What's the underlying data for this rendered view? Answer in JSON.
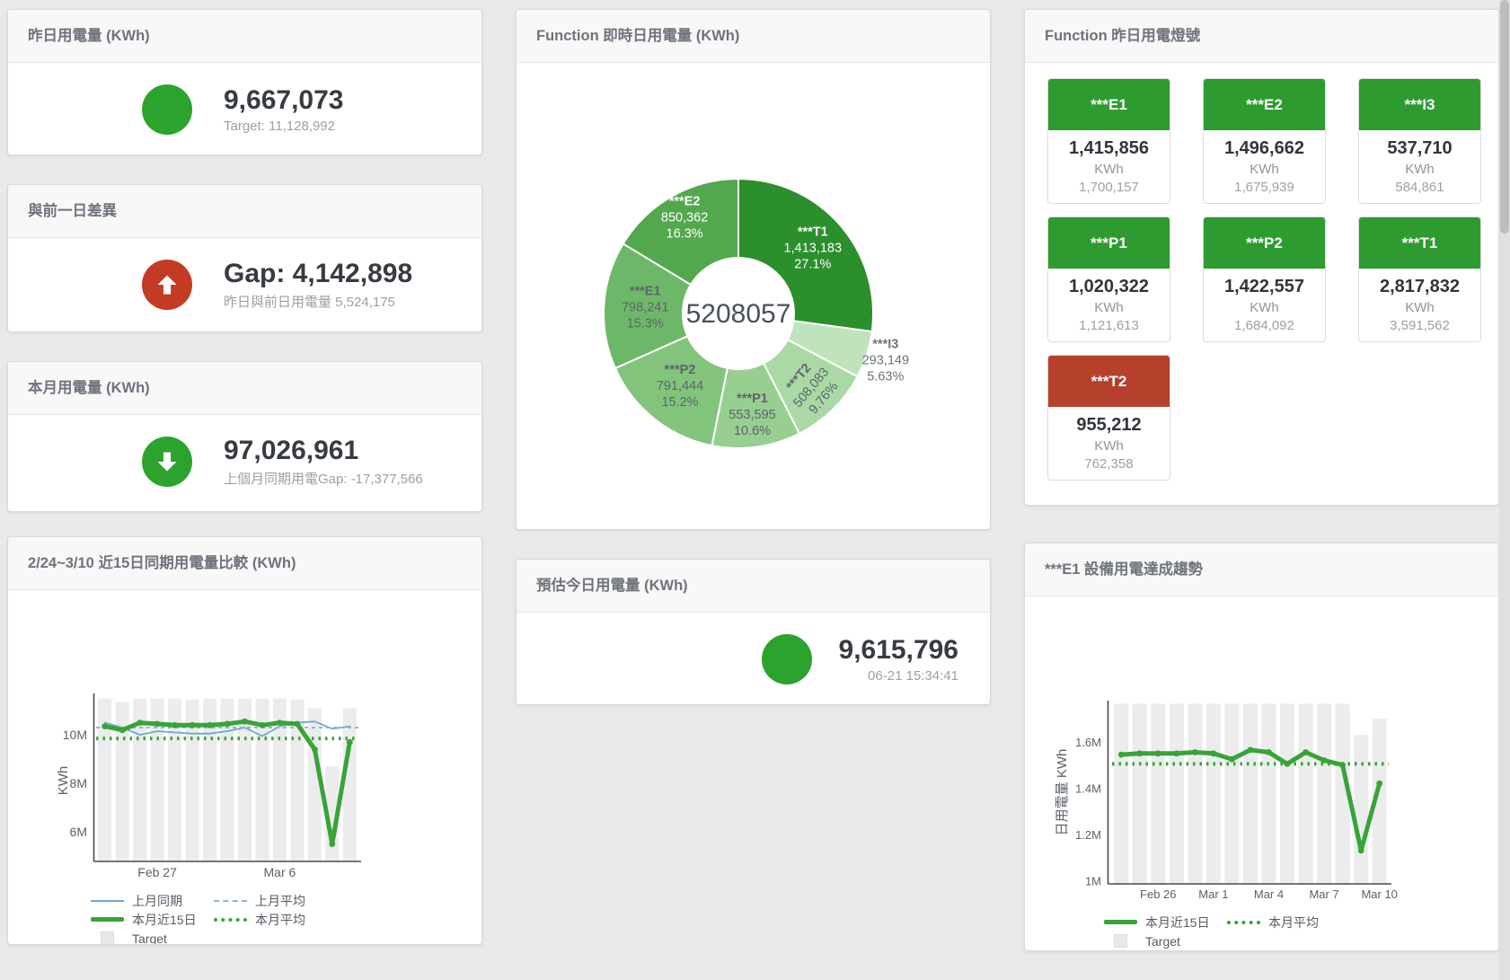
{
  "cards": {
    "yesterday": {
      "title": "昨日用電量 (KWh)",
      "value": "9,667,073",
      "subtitle": "Target: 11,128,992",
      "indicator": "green-circle"
    },
    "gap_prev_day": {
      "title": "與前一日差異",
      "value": "Gap: 4,142,898",
      "subtitle": "昨日與前日用電量 5,524,175",
      "indicator": "red-up-arrow"
    },
    "month": {
      "title": "本月用電量 (KWh)",
      "value": "97,026,961",
      "subtitle": "上個月同期用電Gap: -17,377,566",
      "indicator": "green-down-arrow"
    },
    "estimate": {
      "title": "預估今日用電量 (KWh)",
      "value": "9,615,796",
      "subtitle": "06-21 15:34:41",
      "indicator": "green-circle"
    },
    "lights": {
      "title": "Function 昨日用電燈號",
      "unit": "KWh",
      "tiles": [
        {
          "label": "***E1",
          "value": "1,415,856",
          "target": "1,700,157",
          "status": "green"
        },
        {
          "label": "***E2",
          "value": "1,496,662",
          "target": "1,675,939",
          "status": "green"
        },
        {
          "label": "***I3",
          "value": "537,710",
          "target": "584,861",
          "status": "green"
        },
        {
          "label": "***P1",
          "value": "1,020,322",
          "target": "1,121,613",
          "status": "green"
        },
        {
          "label": "***P2",
          "value": "1,422,557",
          "target": "1,684,092",
          "status": "green"
        },
        {
          "label": "***T1",
          "value": "2,817,832",
          "target": "3,591,562",
          "status": "green"
        },
        {
          "label": "***T2",
          "value": "955,212",
          "target": "762,358",
          "status": "red"
        }
      ]
    }
  },
  "colors": {
    "status_green": "#2ca32e",
    "status_red": "#c43b23",
    "tile_green": "#2e9b31",
    "tile_red": "#b5402c",
    "line_green": "#38a438",
    "line_blue": "#6da7d2",
    "bar_gray": "#ececec"
  },
  "chart_data": [
    {
      "id": "compare",
      "type": "bar",
      "subtype": "bar+line combo",
      "title": "2/24~3/10 近15日同期用電量比較 (KWh)",
      "ylabel": "KWh",
      "value_unit": "million KWh",
      "ylim": [
        4.78,
        11.8
      ],
      "yticks": [
        {
          "v": 6,
          "label": "6M"
        },
        {
          "v": 8,
          "label": "8M"
        },
        {
          "v": 10,
          "label": "10M"
        }
      ],
      "xticks": [
        {
          "i": 3,
          "label": "Feb 27"
        },
        {
          "i": 10,
          "label": "Mar 6"
        }
      ],
      "x_range": "Feb 24 - Mar 10, 15 days",
      "bars": {
        "name": "Target",
        "color": "#ececec",
        "values": [
          11.5,
          11.35,
          11.5,
          11.5,
          11.5,
          11.45,
          11.5,
          11.5,
          11.5,
          11.5,
          11.5,
          11.45,
          11.1,
          8.7,
          11.1
        ]
      },
      "series": [
        {
          "name": "上月同期",
          "style": "solid",
          "color": "#6da7d2",
          "width": 1.8,
          "values": [
            10.5,
            10.3,
            10.0,
            10.15,
            10.1,
            10.05,
            10.05,
            10.15,
            10.3,
            9.95,
            10.35,
            10.5,
            10.55,
            10.25,
            10.35
          ]
        },
        {
          "name": "上月平均",
          "style": "dashed",
          "color": "#87b8dd",
          "width": 2,
          "avg": 10.3
        },
        {
          "name": "本月平均",
          "style": "dotted",
          "color": "#38a438",
          "width": 4,
          "avg": 9.85
        },
        {
          "name": "本月近15日",
          "style": "solid",
          "color": "#38a438",
          "width": 5,
          "markers": true,
          "values": [
            10.35,
            10.2,
            10.5,
            10.45,
            10.4,
            10.4,
            10.4,
            10.45,
            10.55,
            10.4,
            10.5,
            10.45,
            9.4,
            5.5,
            9.7
          ]
        }
      ],
      "legend": [
        [
          {
            "label": "上月同期",
            "swatch": "blue-line"
          },
          {
            "label": "上月平均",
            "swatch": "blue-dash"
          }
        ],
        [
          {
            "label": "本月近15日",
            "swatch": "green-line"
          },
          {
            "label": "本月平均",
            "swatch": "green-dot"
          }
        ],
        [
          {
            "label": "Target",
            "swatch": "gray-square"
          }
        ]
      ]
    },
    {
      "id": "donut",
      "type": "pie",
      "title": "Function 即時日用電量 (KWh)",
      "center_total": "5208057",
      "slices": [
        {
          "name": "***T1",
          "display": "1,413,183",
          "value": 1413183,
          "pct": "27.1%",
          "color": "#2b8f2c",
          "text": "#ffffff",
          "labelR": 110
        },
        {
          "name": "***I3",
          "display": "293,149",
          "value": 293149,
          "pct": "5.63%",
          "color": "#bfe3ba",
          "text": "#6d727b",
          "outside": true,
          "labelR": 172
        },
        {
          "name": "***T2",
          "display": "508,083",
          "value": 508083,
          "pct": "9.76%",
          "color": "#abd9a5",
          "text": "#5d636c",
          "rotate": -50,
          "labelR": 116
        },
        {
          "name": "***P1",
          "display": "553,595",
          "value": 553595,
          "pct": "10.6%",
          "color": "#97cf91",
          "text": "#5d636c",
          "labelR": 114
        },
        {
          "name": "***P2",
          "display": "791,444",
          "value": 791444,
          "pct": "15.2%",
          "color": "#82c47c",
          "text": "#5d636c",
          "labelR": 104
        },
        {
          "name": "***E1",
          "display": "798,241",
          "value": 798241,
          "pct": "15.3%",
          "color": "#6db868",
          "text": "#5d636c",
          "labelR": 104
        },
        {
          "name": "***E2",
          "display": "850,362",
          "value": 850362,
          "pct": "16.3%",
          "color": "#53a84e",
          "text": "#ffffff",
          "labelR": 122
        }
      ]
    },
    {
      "id": "trend",
      "type": "bar",
      "subtype": "bar+line combo",
      "title": "***E1 設備用電達成趨勢",
      "ylabel": "日用電量 KWh",
      "value_unit": "million KWh",
      "ylim": [
        0.986,
        1.78
      ],
      "yticks": [
        {
          "v": 1,
          "label": "1M"
        },
        {
          "v": 1.2,
          "label": "1.2M"
        },
        {
          "v": 1.4,
          "label": "1.4M"
        },
        {
          "v": 1.6,
          "label": "1.6M"
        }
      ],
      "xticks": [
        {
          "i": 2,
          "label": "Feb 26"
        },
        {
          "i": 5,
          "label": "Mar 1"
        },
        {
          "i": 8,
          "label": "Mar 4"
        },
        {
          "i": 11,
          "label": "Mar 7"
        },
        {
          "i": 14,
          "label": "Mar 10"
        }
      ],
      "x_range": "Feb 24 - Mar 10, 15 days",
      "bars": {
        "name": "Target",
        "color": "#ececec",
        "values": [
          1.765,
          1.765,
          1.765,
          1.765,
          1.765,
          1.765,
          1.765,
          1.765,
          1.765,
          1.765,
          1.765,
          1.765,
          1.765,
          1.63,
          1.7
        ]
      },
      "series": [
        {
          "name": "本月平均",
          "style": "dotted",
          "color": "#38a438",
          "width": 4,
          "avg": 1.505
        },
        {
          "name": "本月近15日",
          "style": "solid",
          "color": "#38a438",
          "width": 5,
          "markers": true,
          "values": [
            1.545,
            1.55,
            1.55,
            1.55,
            1.555,
            1.55,
            1.525,
            1.565,
            1.555,
            1.505,
            1.555,
            1.52,
            1.5,
            1.13,
            1.42
          ]
        }
      ],
      "legend": [
        [
          {
            "label": "本月近15日",
            "swatch": "green-line"
          },
          {
            "label": "本月平均",
            "swatch": "green-dot"
          }
        ],
        [
          {
            "label": "Target",
            "swatch": "gray-square"
          }
        ]
      ]
    }
  ]
}
